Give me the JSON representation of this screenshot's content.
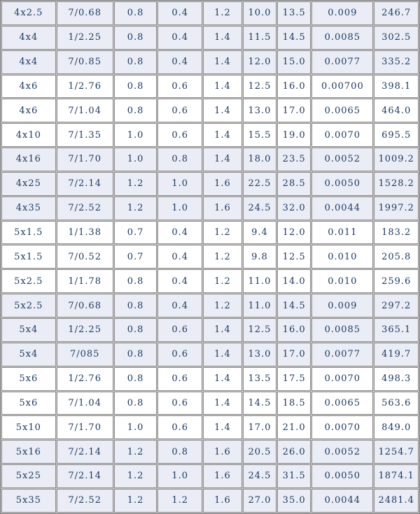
{
  "colors": {
    "text": "#1c3a63",
    "row_shaded_bg": "#eaedf5",
    "row_plain_bg": "#ffffff",
    "grid_line": "#8d8d8d",
    "grid_gap": "#c9c9c9",
    "outer_border": "#7e7e7e"
  },
  "table": {
    "column_count": 9,
    "rows": [
      {
        "shaded": true,
        "cells": [
          "4x2.5",
          "7/0.68",
          "0.8",
          "0.4",
          "1.2",
          "10.0",
          "13.5",
          "0.009",
          "246.7"
        ]
      },
      {
        "shaded": true,
        "cells": [
          "4x4",
          "1/2.25",
          "0.8",
          "0.4",
          "1.4",
          "11.5",
          "14.5",
          "0.0085",
          "302.5"
        ]
      },
      {
        "shaded": true,
        "cells": [
          "4x4",
          "7/0.85",
          "0.8",
          "0.4",
          "1.4",
          "12.0",
          "15.0",
          "0.0077",
          "335.2"
        ]
      },
      {
        "shaded": false,
        "cells": [
          "4x6",
          "1/2.76",
          "0.8",
          "0.6",
          "1.4",
          "12.5",
          "16.0",
          "0.00700",
          "398.1"
        ]
      },
      {
        "shaded": false,
        "cells": [
          "4x6",
          "7/1.04",
          "0.8",
          "0.6",
          "1.4",
          "13.0",
          "17.0",
          "0.0065",
          "464.0"
        ]
      },
      {
        "shaded": false,
        "cells": [
          "4x10",
          "7/1.35",
          "1.0",
          "0.6",
          "1.4",
          "15.5",
          "19.0",
          "0.0070",
          "695.5"
        ]
      },
      {
        "shaded": true,
        "cells": [
          "4x16",
          "7/1.70",
          "1.0",
          "0.8",
          "1.4",
          "18.0",
          "23.5",
          "0.0052",
          "1009.2"
        ]
      },
      {
        "shaded": true,
        "cells": [
          "4x25",
          "7/2.14",
          "1.2",
          "1.0",
          "1.6",
          "22.5",
          "28.5",
          "0.0050",
          "1528.2"
        ]
      },
      {
        "shaded": true,
        "cells": [
          "4x35",
          "7/2.52",
          "1.2",
          "1.0",
          "1.6",
          "24.5",
          "32.0",
          "0.0044",
          "1997.2"
        ]
      },
      {
        "shaded": false,
        "cells": [
          "5x1.5",
          "1/1.38",
          "0.7",
          "0.4",
          "1.2",
          "9.4",
          "12.0",
          "0.011",
          "183.2"
        ]
      },
      {
        "shaded": false,
        "cells": [
          "5x1.5",
          "7/0.52",
          "0.7",
          "0.4",
          "1.2",
          "9.8",
          "12.5",
          "0.010",
          "205.8"
        ]
      },
      {
        "shaded": false,
        "cells": [
          "5x2.5",
          "1/1.78",
          "0.8",
          "0.4",
          "1.2",
          "11.0",
          "14.0",
          "0.010",
          "259.6"
        ]
      },
      {
        "shaded": true,
        "cells": [
          "5x2.5",
          "7/0.68",
          "0.8",
          "0.4",
          "1.2",
          "11.0",
          "14.5",
          "0.009",
          "297.2"
        ]
      },
      {
        "shaded": true,
        "cells": [
          "5x4",
          "1/2.25",
          "0.8",
          "0.6",
          "1.4",
          "12.5",
          "16.0",
          "0.0085",
          "365.1"
        ]
      },
      {
        "shaded": true,
        "cells": [
          "5x4",
          "7/085",
          "0.8",
          "0.6",
          "1.4",
          "13.0",
          "17.0",
          "0.0077",
          "419.7"
        ]
      },
      {
        "shaded": false,
        "cells": [
          "5x6",
          "1/2.76",
          "0.8",
          "0.6",
          "1.4",
          "13.5",
          "17.5",
          "0.0070",
          "498.3"
        ]
      },
      {
        "shaded": false,
        "cells": [
          "5x6",
          "7/1.04",
          "0.8",
          "0.6",
          "1.4",
          "14.5",
          "18.5",
          "0.0065",
          "563.6"
        ]
      },
      {
        "shaded": false,
        "cells": [
          "5x10",
          "7/1.70",
          "1.0",
          "0.6",
          "1.4",
          "17.0",
          "21.0",
          "0.0070",
          "849.0"
        ]
      },
      {
        "shaded": true,
        "cells": [
          "5x16",
          "7/2.14",
          "1.2",
          "0.8",
          "1.6",
          "20.5",
          "26.0",
          "0.0052",
          "1254.7"
        ]
      },
      {
        "shaded": true,
        "cells": [
          "5x25",
          "7/2.14",
          "1.2",
          "1.0",
          "1.6",
          "24.5",
          "31.5",
          "0.0050",
          "1874.1"
        ]
      },
      {
        "shaded": true,
        "cells": [
          "5x35",
          "7/2.52",
          "1.2",
          "1.2",
          "1.6",
          "27.0",
          "35.0",
          "0.0044",
          "2481.4"
        ]
      }
    ]
  }
}
